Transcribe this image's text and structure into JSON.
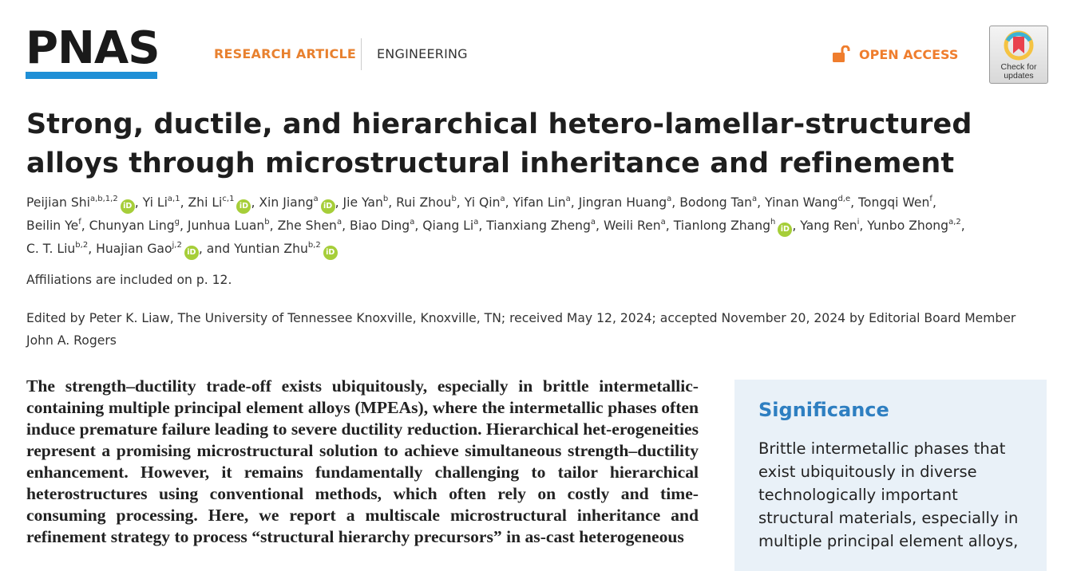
{
  "header": {
    "logo": "PNAS",
    "article_type": "RESEARCH ARTICLE",
    "section": "ENGINEERING",
    "open_access": "OPEN ACCESS",
    "check_updates": "Check for updates",
    "colors": {
      "accent": "#e8812f",
      "logo_bar": "#1f8fd6",
      "orcid": "#a6ce39"
    }
  },
  "title": "Strong, ductile, and hierarchical hetero-lamellar-structured alloys through microstructural inheritance and refinement",
  "authors": [
    [
      {
        "name": "Peijian Shi",
        "sup": "a,b,1,2",
        "orcid": true,
        "sep": ", "
      },
      {
        "name": "Yi Li",
        "sup": "a,1",
        "sep": ", "
      },
      {
        "name": "Zhi Li",
        "sup": "c,1",
        "orcid": true,
        "sep": ", "
      },
      {
        "name": "Xin Jiang",
        "sup": "a",
        "orcid": true,
        "sep": ", "
      },
      {
        "name": "Jie Yan",
        "sup": "b",
        "sep": ", "
      },
      {
        "name": "Rui Zhou",
        "sup": "b",
        "sep": ", "
      },
      {
        "name": "Yi Qin",
        "sup": "a",
        "sep": ", "
      },
      {
        "name": "Yifan Lin",
        "sup": "a",
        "sep": ", "
      },
      {
        "name": "Jingran Huang",
        "sup": "a",
        "sep": ", "
      },
      {
        "name": "Bodong Tan",
        "sup": "a",
        "sep": ", "
      },
      {
        "name": "Yinan Wang",
        "sup": "d,e",
        "sep": ", "
      },
      {
        "name": "Tongqi Wen",
        "sup": "f",
        "sep": ","
      }
    ],
    [
      {
        "name": "Beilin Ye",
        "sup": "f",
        "sep": ", "
      },
      {
        "name": "Chunyan Ling",
        "sup": "g",
        "sep": ", "
      },
      {
        "name": "Junhua Luan",
        "sup": "b",
        "sep": ", "
      },
      {
        "name": "Zhe Shen",
        "sup": "a",
        "sep": ", "
      },
      {
        "name": "Biao Ding",
        "sup": "a",
        "sep": ", "
      },
      {
        "name": "Qiang Li",
        "sup": "a",
        "sep": ", "
      },
      {
        "name": "Tianxiang Zheng",
        "sup": "a",
        "sep": ", "
      },
      {
        "name": "Weili Ren",
        "sup": "a",
        "sep": ", "
      },
      {
        "name": "Tianlong Zhang",
        "sup": "h",
        "orcid": true,
        "sep": ", "
      },
      {
        "name": "Yang Ren",
        "sup": "i",
        "sep": ", "
      },
      {
        "name": "Yunbo Zhong",
        "sup": "a,2",
        "sep": ","
      }
    ],
    [
      {
        "name": "C. T. Liu",
        "sup": "b,2",
        "sep": ", "
      },
      {
        "name": "Huajian Gao",
        "sup": "j,2",
        "orcid": true,
        "sep": ", and "
      },
      {
        "name": "Yuntian Zhu",
        "sup": "b,2",
        "orcid": true,
        "sep": ""
      }
    ]
  ],
  "orcid_label": "iD",
  "affiliations": "Affiliations are included on p. 12.",
  "edited_by": "Edited by Peter K. Liaw, The University of Tennessee Knoxville, Knoxville, TN; received May 12, 2024; accepted November 20, 2024 by Editorial Board Member John A. Rogers",
  "abstract": "The strength–ductility trade-off exists ubiquitously, especially in brittle intermetallic-containing multiple principal element alloys (MPEAs), where the intermetallic phases often induce premature failure leading to severe ductility reduction. Hierarchical het-erogeneities represent a promising microstructural solution to achieve simultaneous strength–ductility enhancement. However, it remains fundamentally challenging to tailor hierarchical heterostructures using conventional methods, which often rely on costly and time-consuming processing. Here, we report a multiscale microstructural inheritance and refinement strategy to process “structural hierarchy precursors” in as-cast heterogeneous",
  "significance": {
    "title": "Significance",
    "text": "Brittle intermetallic phases that exist ubiquitously in diverse technologically important structural materials, especially in multiple principal element alloys,"
  }
}
